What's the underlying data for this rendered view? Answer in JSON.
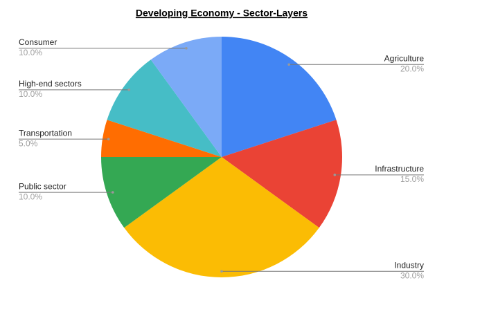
{
  "chart_data": {
    "type": "pie",
    "title": "Developing Economy - Sector-Layers",
    "categories": [
      "Agriculture",
      "Infrastructure",
      "Industry",
      "Public sector",
      "Transportation",
      "High-end sectors",
      "Consumer"
    ],
    "values": [
      20,
      15,
      30,
      10,
      5,
      10,
      10
    ],
    "value_labels": [
      "20.0%",
      "15.0%",
      "30.0%",
      "10.0%",
      "5.0%",
      "10.0%",
      "10.0%"
    ],
    "colors": [
      "#4285f4",
      "#ea4335",
      "#fbbc04",
      "#34a853",
      "#ff6d01",
      "#46bdc6",
      "#7baaf7"
    ]
  }
}
